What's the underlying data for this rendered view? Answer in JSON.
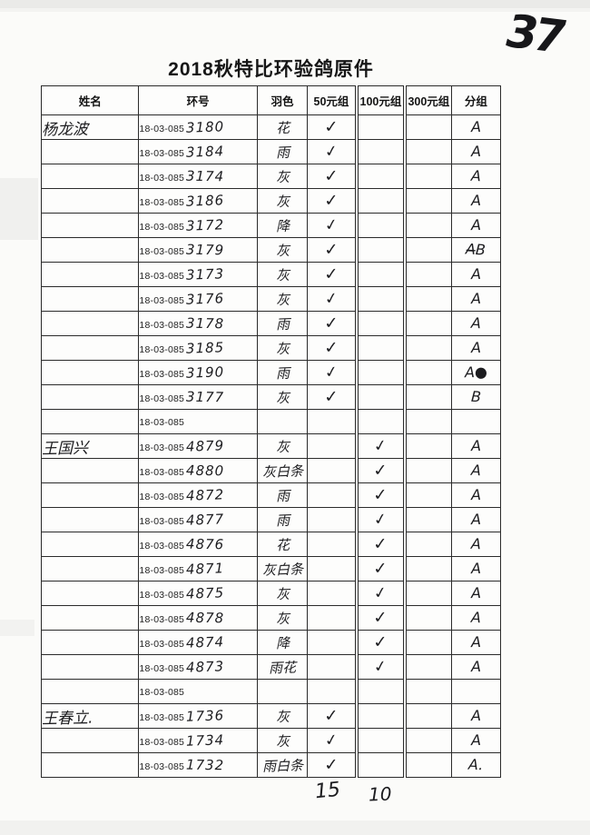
{
  "page": {
    "title": "2018秋特比环验鸽原件",
    "page_number": "37",
    "totals": {
      "group_50": "15",
      "group_100": "10"
    }
  },
  "table": {
    "headers": [
      "姓名",
      "环号",
      "羽色",
      "50元组",
      "100元组",
      "300元组",
      "分组"
    ],
    "ring_prefix": "18-03-085",
    "rows": [
      {
        "name": "杨龙波",
        "ring_suffix": "3180",
        "color": "花",
        "g50": "✓",
        "g100": "",
        "g300": "",
        "group": "A"
      },
      {
        "name": "",
        "ring_suffix": "3184",
        "color": "雨",
        "g50": "✓",
        "g100": "",
        "g300": "",
        "group": "A"
      },
      {
        "name": "",
        "ring_suffix": "3174",
        "color": "灰",
        "g50": "✓",
        "g100": "",
        "g300": "",
        "group": "A"
      },
      {
        "name": "",
        "ring_suffix": "3186",
        "color": "灰",
        "g50": "✓",
        "g100": "",
        "g300": "",
        "group": "A"
      },
      {
        "name": "",
        "ring_suffix": "3172",
        "color": "降",
        "g50": "✓",
        "g100": "",
        "g300": "",
        "group": "A"
      },
      {
        "name": "",
        "ring_suffix": "3179",
        "color": "灰",
        "g50": "✓",
        "g100": "",
        "g300": "",
        "group": "A̶B"
      },
      {
        "name": "",
        "ring_suffix": "3173",
        "color": "灰",
        "g50": "✓",
        "g100": "",
        "g300": "",
        "group": "A"
      },
      {
        "name": "",
        "ring_suffix": "3176",
        "color": "灰",
        "g50": "✓",
        "g100": "",
        "g300": "",
        "group": "A"
      },
      {
        "name": "",
        "ring_suffix": "3178",
        "color": "雨",
        "g50": "✓",
        "g100": "",
        "g300": "",
        "group": "A"
      },
      {
        "name": "",
        "ring_suffix": "3185",
        "color": "灰",
        "g50": "✓",
        "g100": "",
        "g300": "",
        "group": "A"
      },
      {
        "name": "",
        "ring_suffix": "3190",
        "color": "雨",
        "g50": "✓",
        "g100": "",
        "g300": "",
        "group": "A●"
      },
      {
        "name": "",
        "ring_suffix": "3177",
        "color": "灰",
        "g50": "✓",
        "g100": "",
        "g300": "",
        "group": "B"
      },
      {
        "name": "",
        "ring_suffix": "",
        "color": "",
        "g50": "",
        "g100": "",
        "g300": "",
        "group": ""
      },
      {
        "name": "王国兴",
        "ring_suffix": "4879",
        "color": "灰",
        "g50": "",
        "g100": "✓",
        "g300": "",
        "group": "A"
      },
      {
        "name": "",
        "ring_suffix": "4880",
        "color": "灰白条",
        "g50": "",
        "g100": "✓",
        "g300": "",
        "group": "A"
      },
      {
        "name": "",
        "ring_suffix": "4872",
        "color": "雨",
        "g50": "",
        "g100": "✓",
        "g300": "",
        "group": "A"
      },
      {
        "name": "",
        "ring_suffix": "4877",
        "color": "雨",
        "g50": "",
        "g100": "✓",
        "g300": "",
        "group": "A"
      },
      {
        "name": "",
        "ring_suffix": "4876",
        "color": "花",
        "g50": "",
        "g100": "✓",
        "g300": "",
        "group": "A"
      },
      {
        "name": "",
        "ring_suffix": "4871",
        "color": "灰白条",
        "g50": "",
        "g100": "✓",
        "g300": "",
        "group": "A"
      },
      {
        "name": "",
        "ring_suffix": "4875",
        "color": "灰",
        "g50": "",
        "g100": "✓",
        "g300": "",
        "group": "A"
      },
      {
        "name": "",
        "ring_suffix": "4878",
        "color": "灰",
        "g50": "",
        "g100": "✓",
        "g300": "",
        "group": "A"
      },
      {
        "name": "",
        "ring_suffix": "4874",
        "color": "降",
        "g50": "",
        "g100": "✓",
        "g300": "",
        "group": "A"
      },
      {
        "name": "",
        "ring_suffix": "4873",
        "color": "雨花",
        "g50": "",
        "g100": "✓",
        "g300": "",
        "group": "A"
      },
      {
        "name": "",
        "ring_suffix": "",
        "color": "",
        "g50": "",
        "g100": "",
        "g300": "",
        "group": ""
      },
      {
        "name": "王春立.",
        "ring_suffix": "1736",
        "color": "灰",
        "g50": "✓",
        "g100": "",
        "g300": "",
        "group": "A"
      },
      {
        "name": "",
        "ring_suffix": "1734",
        "color": "灰",
        "g50": "✓",
        "g100": "",
        "g300": "",
        "group": "A"
      },
      {
        "name": "",
        "ring_suffix": "1732",
        "color": "雨白条",
        "g50": "✓",
        "g100": "",
        "g300": "",
        "group": "A."
      }
    ]
  }
}
